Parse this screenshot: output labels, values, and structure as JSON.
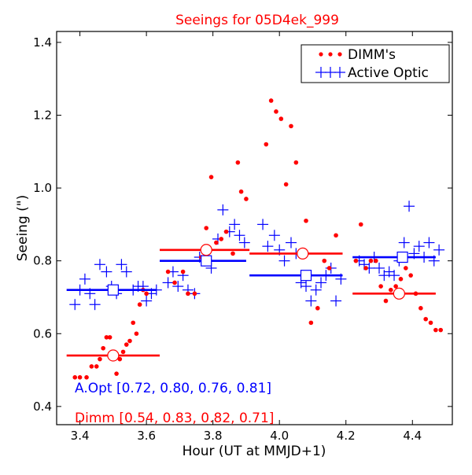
{
  "chart_data": {
    "type": "scatter",
    "title": "Seeings for 05D4ek_999",
    "xlabel": "Hour (UT at MMJD+1)",
    "ylabel": "Seeing (\")",
    "xlim": [
      3.33,
      4.52
    ],
    "ylim": [
      0.35,
      1.43
    ],
    "x_ticks": [
      "3.4",
      "3.6",
      "3.8",
      "4.0",
      "4.2",
      "4.4"
    ],
    "y_ticks": [
      "0.4",
      "0.6",
      "0.8",
      "1.0",
      "1.2",
      "1.4"
    ],
    "grid": false,
    "legend_placement": "top-right",
    "colors": {
      "dimm": "#ff0000",
      "ao": "#0000ff",
      "title": "#ff0000"
    },
    "series": [
      {
        "name": "DIMM's",
        "marker": "dot",
        "x": [
          3.385,
          3.4,
          3.42,
          3.435,
          3.45,
          3.46,
          3.47,
          3.48,
          3.49,
          3.5,
          3.51,
          3.52,
          3.53,
          3.54,
          3.55,
          3.56,
          3.57,
          3.58,
          3.59,
          3.6,
          3.665,
          3.685,
          3.71,
          3.725,
          3.745,
          3.765,
          3.78,
          3.795,
          3.81,
          3.825,
          3.84,
          3.86,
          3.875,
          3.885,
          3.9,
          3.96,
          3.975,
          3.99,
          4.005,
          4.02,
          4.035,
          4.05,
          4.08,
          4.095,
          4.115,
          4.135,
          4.15,
          4.17,
          4.23,
          4.245,
          4.26,
          4.275,
          4.29,
          4.305,
          4.32,
          4.335,
          4.35,
          4.365,
          4.38,
          4.395,
          4.41,
          4.425,
          4.44,
          4.455,
          4.47,
          4.485
        ],
        "y": [
          0.48,
          0.48,
          0.48,
          0.51,
          0.51,
          0.53,
          0.56,
          0.59,
          0.59,
          0.55,
          0.49,
          0.53,
          0.55,
          0.57,
          0.58,
          0.63,
          0.6,
          0.68,
          0.72,
          0.71,
          0.77,
          0.74,
          0.77,
          0.71,
          0.71,
          0.81,
          0.89,
          1.03,
          0.85,
          0.86,
          0.88,
          0.82,
          1.07,
          0.99,
          0.97,
          1.12,
          1.24,
          1.21,
          1.19,
          1.01,
          1.17,
          1.07,
          0.91,
          0.63,
          0.67,
          0.8,
          0.78,
          0.87,
          0.8,
          0.9,
          0.78,
          0.8,
          0.8,
          0.73,
          0.69,
          0.72,
          0.73,
          0.75,
          0.78,
          0.76,
          0.71,
          0.67,
          0.64,
          0.63,
          0.61,
          0.61
        ]
      },
      {
        "name": "Active Optic",
        "marker": "plus",
        "x": [
          3.385,
          3.4,
          3.415,
          3.43,
          3.445,
          3.46,
          3.48,
          3.495,
          3.51,
          3.525,
          3.54,
          3.56,
          3.575,
          3.59,
          3.6,
          3.615,
          3.63,
          3.665,
          3.68,
          3.695,
          3.71,
          3.725,
          3.745,
          3.76,
          3.775,
          3.795,
          3.815,
          3.83,
          3.85,
          3.865,
          3.88,
          3.895,
          3.95,
          3.965,
          3.985,
          4.0,
          4.015,
          4.035,
          4.05,
          4.065,
          4.08,
          4.095,
          4.11,
          4.125,
          4.14,
          4.155,
          4.17,
          4.185,
          4.24,
          4.255,
          4.27,
          4.285,
          4.3,
          4.315,
          4.33,
          4.345,
          4.36,
          4.375,
          4.39,
          4.405,
          4.42,
          4.435,
          4.45,
          4.465,
          4.48
        ],
        "y": [
          0.68,
          0.72,
          0.75,
          0.71,
          0.68,
          0.79,
          0.77,
          0.73,
          0.71,
          0.79,
          0.77,
          0.72,
          0.73,
          0.73,
          0.69,
          0.71,
          0.72,
          0.74,
          0.77,
          0.73,
          0.76,
          0.72,
          0.71,
          0.81,
          0.8,
          0.78,
          0.86,
          0.94,
          0.88,
          0.9,
          0.87,
          0.85,
          0.9,
          0.84,
          0.87,
          0.83,
          0.8,
          0.85,
          0.82,
          0.74,
          0.73,
          0.69,
          0.72,
          0.74,
          0.76,
          0.78,
          0.69,
          0.75,
          0.8,
          0.79,
          0.78,
          0.81,
          0.78,
          0.76,
          0.77,
          0.76,
          0.8,
          0.85,
          0.95,
          0.82,
          0.84,
          0.81,
          0.85,
          0.8,
          0.83
        ]
      }
    ],
    "summary_lines": [
      {
        "color": "ao",
        "x": [
          3.36,
          3.63
        ],
        "y": 0.72,
        "mx": 3.5
      },
      {
        "color": "ao",
        "x": [
          3.64,
          3.9
        ],
        "y": 0.8,
        "mx": 3.78
      },
      {
        "color": "ao",
        "x": [
          3.91,
          4.19
        ],
        "y": 0.76,
        "mx": 4.08
      },
      {
        "color": "ao",
        "x": [
          4.22,
          4.47
        ],
        "y": 0.81,
        "mx": 4.37
      },
      {
        "color": "dimm",
        "x": [
          3.36,
          3.64
        ],
        "y": 0.54,
        "mx": 3.5
      },
      {
        "color": "dimm",
        "x": [
          3.64,
          3.91
        ],
        "y": 0.83,
        "mx": 3.78
      },
      {
        "color": "dimm",
        "x": [
          3.91,
          4.19
        ],
        "y": 0.82,
        "mx": 4.07
      },
      {
        "color": "dimm",
        "x": [
          4.22,
          4.47
        ],
        "y": 0.71,
        "mx": 4.36
      }
    ],
    "annotations": {
      "ao_means": "A.Opt [0.72, 0.80, 0.76, 0.81]",
      "dimm_means": "Dimm [0.54, 0.83, 0.82, 0.71]"
    }
  }
}
